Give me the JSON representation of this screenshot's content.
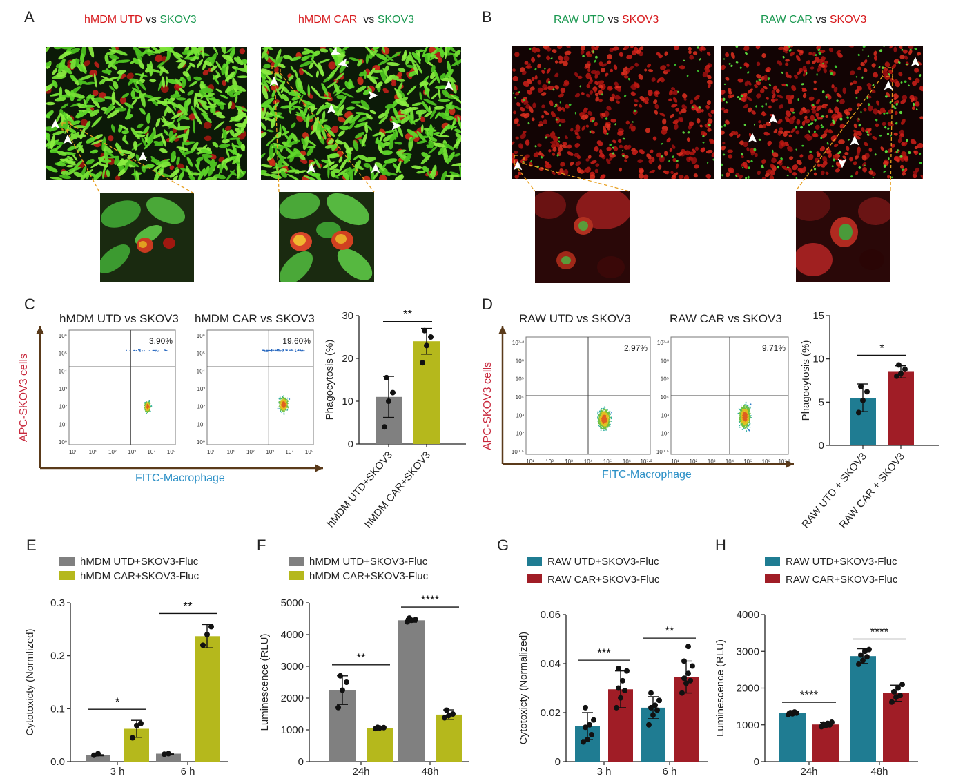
{
  "panels": {
    "A": {
      "letter": "A",
      "images": [
        {
          "title_parts": [
            {
              "text": "hMDM UTD",
              "color": "#d7191c"
            },
            {
              "text": " vs ",
              "color": "#222222"
            },
            {
              "text": "SKOV3",
              "color": "#1a9850"
            }
          ]
        },
        {
          "title_parts": [
            {
              "text": "hMDM CAR",
              "color": "#d7191c"
            },
            {
              "text": "  vs ",
              "color": "#222222"
            },
            {
              "text": "SKOV3",
              "color": "#1a9850"
            }
          ]
        }
      ]
    },
    "B": {
      "letter": "B",
      "images": [
        {
          "title_parts": [
            {
              "text": "RAW UTD",
              "color": "#1a9850"
            },
            {
              "text": " vs ",
              "color": "#222222"
            },
            {
              "text": "SKOV3",
              "color": "#d7191c"
            }
          ]
        },
        {
          "title_parts": [
            {
              "text": "RAW CAR",
              "color": "#1a9850"
            },
            {
              "text": " vs ",
              "color": "#222222"
            },
            {
              "text": "SKOV3",
              "color": "#d7191c"
            }
          ]
        }
      ]
    },
    "C": {
      "letter": "C",
      "flow_titles": [
        "hMDM UTD vs SKOV3",
        "hMDM CAR vs SKOV3"
      ],
      "gates": [
        "3.90%",
        "19.60%"
      ],
      "y_axis_title": "APC-SKOV3 cells",
      "x_axis_title": "FITC-Macrophage",
      "y_ticks": [
        "10⁶",
        "10⁵",
        "10⁴",
        "10³",
        "10²",
        "10¹",
        "10⁰"
      ],
      "x_ticks": [
        "10⁰",
        "10¹",
        "10²",
        "10³",
        "10⁴",
        "10⁵"
      ]
    },
    "D": {
      "letter": "D",
      "flow_titles": [
        "RAW UTD vs SKOV3",
        "RAW CAR vs SKOV3"
      ],
      "gates": [
        "2.97%",
        "9.71%"
      ],
      "y_axis_title": "APC-SKOV3 cells",
      "x_axis_title": "FITC-Macrophage",
      "y_ticks": [
        "10⁷·²",
        "10⁶",
        "10⁵",
        "10⁴",
        "10³",
        "10²",
        "10⁰·⁵"
      ],
      "x_ticks": [
        "10¹",
        "10²",
        "10³",
        "10⁴",
        "10⁵",
        "10⁶",
        "10⁷·³"
      ]
    },
    "E_letter": "E",
    "F_letter": "F",
    "G_letter": "G",
    "H_letter": "H"
  },
  "chart_data": [
    {
      "id": "C-bar",
      "type": "bar",
      "categories": [
        "hMDM UTD+SKOV3",
        "hMDM CAR+SKOV3"
      ],
      "values": [
        11,
        24
      ],
      "errors": [
        4.8,
        3
      ],
      "points": [
        [
          4,
          10,
          12,
          15.5
        ],
        [
          19,
          23,
          25,
          26.5
        ]
      ],
      "colors": [
        "#808080",
        "#b5b81c"
      ],
      "ylabel": "Phagocytosis (%)",
      "ylim": [
        0,
        30
      ],
      "yticks": [
        0,
        10,
        20,
        30
      ],
      "significance": [
        "**"
      ]
    },
    {
      "id": "D-bar",
      "type": "bar",
      "categories": [
        "RAW UTD + SKOV3",
        "RAW CAR + SKOV3"
      ],
      "values": [
        5.5,
        8.5
      ],
      "errors": [
        1.6,
        0.7
      ],
      "points": [
        [
          3.8,
          5.2,
          6.2,
          6.8
        ],
        [
          8,
          8.3,
          8.8,
          9.3
        ]
      ],
      "colors": [
        "#1f7c92",
        "#a01d26"
      ],
      "ylabel": "Phagocytosis (%)",
      "ylim": [
        0,
        15
      ],
      "yticks": [
        0,
        5,
        10,
        15
      ],
      "significance": [
        "*"
      ]
    },
    {
      "id": "E",
      "type": "bar",
      "categories": [
        "3 h",
        "6 h"
      ],
      "series": [
        {
          "name": "hMDM UTD+SKOV3-Fluc",
          "color": "#808080",
          "values": [
            0.012,
            0.015
          ],
          "errors": [
            0.001,
            0.001
          ],
          "points": [
            [
              0.012,
              0.015
            ],
            [
              0.014,
              0.015
            ]
          ]
        },
        {
          "name": "hMDM CAR+SKOV3-Fluc",
          "color": "#b5b81c",
          "values": [
            0.062,
            0.237
          ],
          "errors": [
            0.016,
            0.022
          ],
          "points": [
            [
              0.045,
              0.068,
              0.072
            ],
            [
              0.22,
              0.24,
              0.255
            ]
          ]
        }
      ],
      "ylabel": "Cytotoxicty (Normlized)",
      "ylim": [
        0,
        0.3
      ],
      "yticks": [
        "0.0",
        "0.1",
        "0.2",
        "0.3"
      ],
      "significance": [
        "*",
        "**"
      ]
    },
    {
      "id": "F",
      "type": "bar",
      "categories": [
        "24h",
        "48h"
      ],
      "series": [
        {
          "name": "hMDM UTD+SKOV3-Fluc",
          "color": "#808080",
          "values": [
            2250,
            4450
          ],
          "errors": [
            450,
            60
          ],
          "points": [
            [
              1700,
              2250,
              2500,
              2700
            ],
            [
              4400,
              4450,
              4470,
              4520
            ]
          ]
        },
        {
          "name": "hMDM CAR+SKOV3-Fluc",
          "color": "#b5b81c",
          "values": [
            1060,
            1480
          ],
          "errors": [
            20,
            150
          ],
          "points": [
            [
              1040,
              1060,
              1070,
              1080
            ],
            [
              1380,
              1450,
              1500,
              1620
            ]
          ]
        }
      ],
      "ylabel": "Luminescence (RLU)",
      "ylim": [
        0,
        5000
      ],
      "yticks": [
        0,
        1000,
        2000,
        3000,
        4000,
        5000
      ],
      "significance": [
        "**",
        "****"
      ]
    },
    {
      "id": "G",
      "type": "bar",
      "categories": [
        "3 h",
        "6 h"
      ],
      "series": [
        {
          "name": "RAW UTD+SKOV3-Fluc",
          "color": "#1f7c92",
          "values": [
            0.0145,
            0.022
          ],
          "errors": [
            0.0055,
            0.0045
          ],
          "points": [
            [
              0.008,
              0.009,
              0.011,
              0.014,
              0.015,
              0.017,
              0.022
            ],
            [
              0.015,
              0.019,
              0.021,
              0.022,
              0.023,
              0.025,
              0.028
            ]
          ]
        },
        {
          "name": "RAW CAR+SKOV3-Fluc",
          "color": "#a01d26",
          "values": [
            0.0295,
            0.0345
          ],
          "errors": [
            0.0075,
            0.0065
          ],
          "points": [
            [
              0.022,
              0.026,
              0.029,
              0.03,
              0.033,
              0.037,
              0.038
            ],
            [
              0.028,
              0.032,
              0.033,
              0.034,
              0.036,
              0.039,
              0.041,
              0.047
            ]
          ]
        }
      ],
      "ylabel": "Cytotoxicty (Normalized)",
      "ylim": [
        0,
        0.06
      ],
      "yticks": [
        "0",
        "0.02",
        "0.04",
        "0.06"
      ],
      "significance": [
        "***",
        "**"
      ]
    },
    {
      "id": "H",
      "type": "bar",
      "categories": [
        "24h",
        "48h"
      ],
      "series": [
        {
          "name": "RAW UTD+SKOV3-Fluc",
          "color": "#1f7c92",
          "values": [
            1320,
            2870
          ],
          "errors": [
            30,
            200
          ],
          "points": [
            [
              1280,
              1300,
              1320,
              1330,
              1350
            ],
            [
              2650,
              2750,
              2850,
              2900,
              3000,
              3050
            ]
          ]
        },
        {
          "name": "RAW CAR+SKOV3-Fluc",
          "color": "#a01d26",
          "values": [
            1010,
            1860
          ],
          "errors": [
            50,
            220
          ],
          "points": [
            [
              950,
              980,
              1000,
              1020,
              1040,
              1070
            ],
            [
              1620,
              1750,
              1800,
              1900,
              2000,
              2100
            ]
          ]
        }
      ],
      "ylabel": "Luminescence (RLU)",
      "ylim": [
        0,
        4000
      ],
      "yticks": [
        0,
        1000,
        2000,
        3000,
        4000
      ],
      "significance": [
        "****",
        "****"
      ]
    }
  ]
}
